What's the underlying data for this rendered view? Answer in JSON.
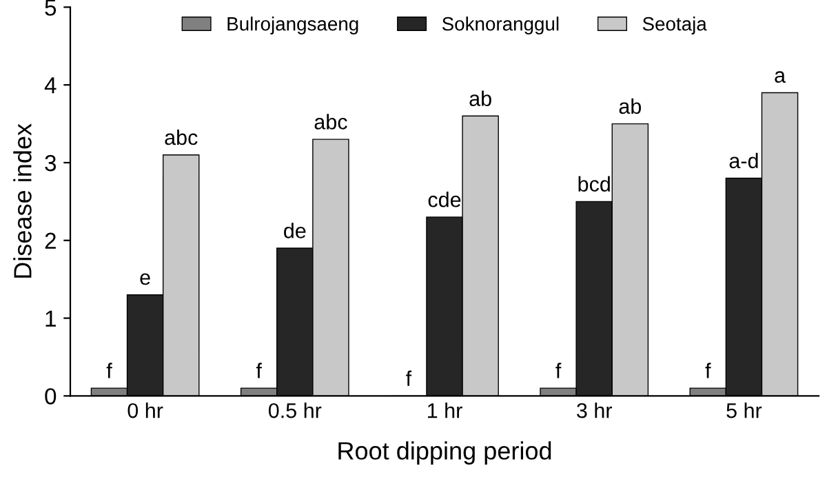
{
  "chart_data": {
    "type": "bar",
    "xlabel": "Root dipping period",
    "ylabel": "Disease index",
    "categories": [
      "0 hr",
      "0.5 hr",
      "1 hr",
      "3 hr",
      "5 hr"
    ],
    "series": [
      {
        "name": "Bulrojangsaeng",
        "color": "#808080",
        "values": [
          0.1,
          0.1,
          0,
          0.1,
          0.1
        ],
        "value_labels": [
          "f",
          "f",
          "f",
          "f",
          "f"
        ]
      },
      {
        "name": "Soknoranggul",
        "color": "#262626",
        "values": [
          1.3,
          1.9,
          2.3,
          2.5,
          2.8
        ],
        "value_labels": [
          "e",
          "de",
          "cde",
          "bcd",
          "a-d"
        ]
      },
      {
        "name": "Seotaja",
        "color": "#c8c8c8",
        "values": [
          3.1,
          3.3,
          3.6,
          3.5,
          3.9
        ],
        "value_labels": [
          "abc",
          "abc",
          "ab",
          "ab",
          "a"
        ]
      }
    ],
    "ylim": [
      0,
      5
    ],
    "yticks": [
      0,
      1,
      2,
      3,
      4,
      5
    ],
    "grid": false,
    "legend": "top"
  }
}
